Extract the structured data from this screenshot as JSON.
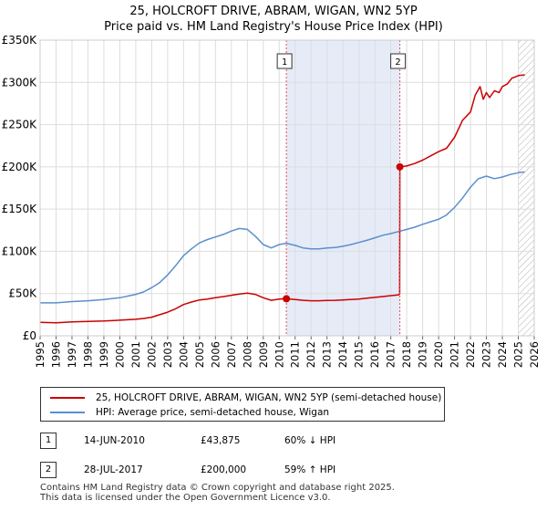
{
  "title_line1": "25, HOLCROFT DRIVE, ABRAM, WIGAN, WN2 5YP",
  "title_line2": "Price paid vs. HM Land Registry's House Price Index (HPI)",
  "chart_data": {
    "type": "line",
    "y_ticks": [
      {
        "value": 0,
        "label": "£0"
      },
      {
        "value": 50000,
        "label": "£50K"
      },
      {
        "value": 100000,
        "label": "£100K"
      },
      {
        "value": 150000,
        "label": "£150K"
      },
      {
        "value": 200000,
        "label": "£200K"
      },
      {
        "value": 250000,
        "label": "£250K"
      },
      {
        "value": 300000,
        "label": "£300K"
      },
      {
        "value": 350000,
        "label": "£350K"
      }
    ],
    "x_ticks": [
      "1995",
      "1996",
      "1997",
      "1998",
      "1999",
      "2000",
      "2001",
      "2002",
      "2003",
      "2004",
      "2005",
      "2006",
      "2007",
      "2008",
      "2009",
      "2010",
      "2011",
      "2012",
      "2013",
      "2014",
      "2015",
      "2016",
      "2017",
      "2018",
      "2019",
      "2020",
      "2021",
      "2022",
      "2023",
      "2024",
      "2025",
      "2026"
    ],
    "xlim": [
      1995,
      2026
    ],
    "ylim": [
      0,
      350000
    ],
    "grid": true,
    "shaded_period": [
      2010.45,
      2017.57
    ],
    "forecast_hatch_from": 2025.0,
    "series": [
      {
        "name": "25, HOLCROFT DRIVE, ABRAM, WIGAN, WN2 5YP (semi-detached house)",
        "color": "#cc0000",
        "x": [
          1995.0,
          1996.0,
          1997.0,
          1998.0,
          1999.0,
          2000.0,
          2001.0,
          2001.5,
          2002.0,
          2002.5,
          2003.0,
          2003.5,
          2004.0,
          2004.5,
          2005.0,
          2005.5,
          2006.0,
          2006.5,
          2007.0,
          2007.5,
          2008.0,
          2008.5,
          2009.0,
          2009.5,
          2010.0,
          2010.45,
          2011.0,
          2011.5,
          2012.0,
          2012.5,
          2013.0,
          2013.5,
          2014.0,
          2014.5,
          2015.0,
          2015.5,
          2016.0,
          2016.5,
          2017.0,
          2017.5,
          2017.56,
          2017.57,
          2018.0,
          2018.5,
          2019.0,
          2019.5,
          2020.0,
          2020.5,
          2021.0,
          2021.5,
          2022.0,
          2022.3,
          2022.6,
          2022.8,
          2023.0,
          2023.2,
          2023.5,
          2023.8,
          2024.0,
          2024.3,
          2024.6,
          2025.0,
          2025.4
        ],
        "y": [
          16000,
          15500,
          16500,
          17000,
          17500,
          18500,
          19500,
          20500,
          22000,
          25000,
          28000,
          32000,
          37000,
          40000,
          42500,
          43500,
          45000,
          46500,
          48000,
          49500,
          50500,
          49000,
          45000,
          42000,
          43500,
          43875,
          43000,
          42000,
          41500,
          41500,
          41800,
          42000,
          42500,
          43000,
          43500,
          44500,
          45500,
          46500,
          47500,
          48500,
          49500,
          200000,
          201000,
          204000,
          208000,
          213000,
          218000,
          222000,
          235000,
          255000,
          265000,
          285000,
          295000,
          280000,
          288000,
          282000,
          290000,
          288000,
          295000,
          298000,
          305000,
          308000,
          309000
        ]
      },
      {
        "name": "HPI: Average price, semi-detached house, Wigan",
        "color": "#5a8fcc",
        "x": [
          1995.0,
          1996.0,
          1997.0,
          1998.0,
          1999.0,
          2000.0,
          2001.0,
          2001.5,
          2002.0,
          2002.5,
          2003.0,
          2003.5,
          2004.0,
          2004.5,
          2005.0,
          2005.5,
          2006.0,
          2006.5,
          2007.0,
          2007.5,
          2008.0,
          2008.5,
          2009.0,
          2009.5,
          2010.0,
          2010.45,
          2011.0,
          2011.5,
          2012.0,
          2012.5,
          2013.0,
          2013.5,
          2014.0,
          2014.5,
          2015.0,
          2015.5,
          2016.0,
          2016.5,
          2017.0,
          2017.5,
          2018.0,
          2018.5,
          2019.0,
          2019.5,
          2020.0,
          2020.5,
          2021.0,
          2021.5,
          2022.0,
          2022.5,
          2023.0,
          2023.5,
          2024.0,
          2024.5,
          2025.0,
          2025.4
        ],
        "y": [
          39000,
          39000,
          40500,
          41500,
          43000,
          45000,
          49000,
          52000,
          57000,
          63000,
          72000,
          83000,
          95000,
          103000,
          110000,
          114000,
          117000,
          120000,
          124000,
          127000,
          126000,
          118000,
          108000,
          104000,
          108000,
          109500,
          107000,
          104000,
          103000,
          103000,
          104000,
          104500,
          106000,
          108000,
          110500,
          113000,
          116000,
          119000,
          121000,
          123500,
          126000,
          128500,
          132000,
          135000,
          138000,
          143000,
          152000,
          163000,
          176000,
          186000,
          189000,
          186000,
          188000,
          191000,
          193000,
          194000
        ]
      }
    ],
    "markers": [
      {
        "label": "1",
        "x": 2010.45,
        "y": 43875
      },
      {
        "label": "2",
        "x": 2017.57,
        "y": 200000
      }
    ]
  },
  "legend": {
    "property_label": "25, HOLCROFT DRIVE, ABRAM, WIGAN, WN2 5YP (semi-detached house)",
    "hpi_label": "HPI: Average price, semi-detached house, Wigan"
  },
  "transactions": [
    {
      "badge": "1",
      "date": "14-JUN-2010",
      "price": "£43,875",
      "hpi_change": "60% ↓ HPI"
    },
    {
      "badge": "2",
      "date": "28-JUL-2017",
      "price": "£200,000",
      "hpi_change": "59% ↑ HPI"
    }
  ],
  "footer_line1": "Contains HM Land Registry data © Crown copyright and database right 2025.",
  "footer_line2": "This data is licensed under the Open Government Licence v3.0."
}
